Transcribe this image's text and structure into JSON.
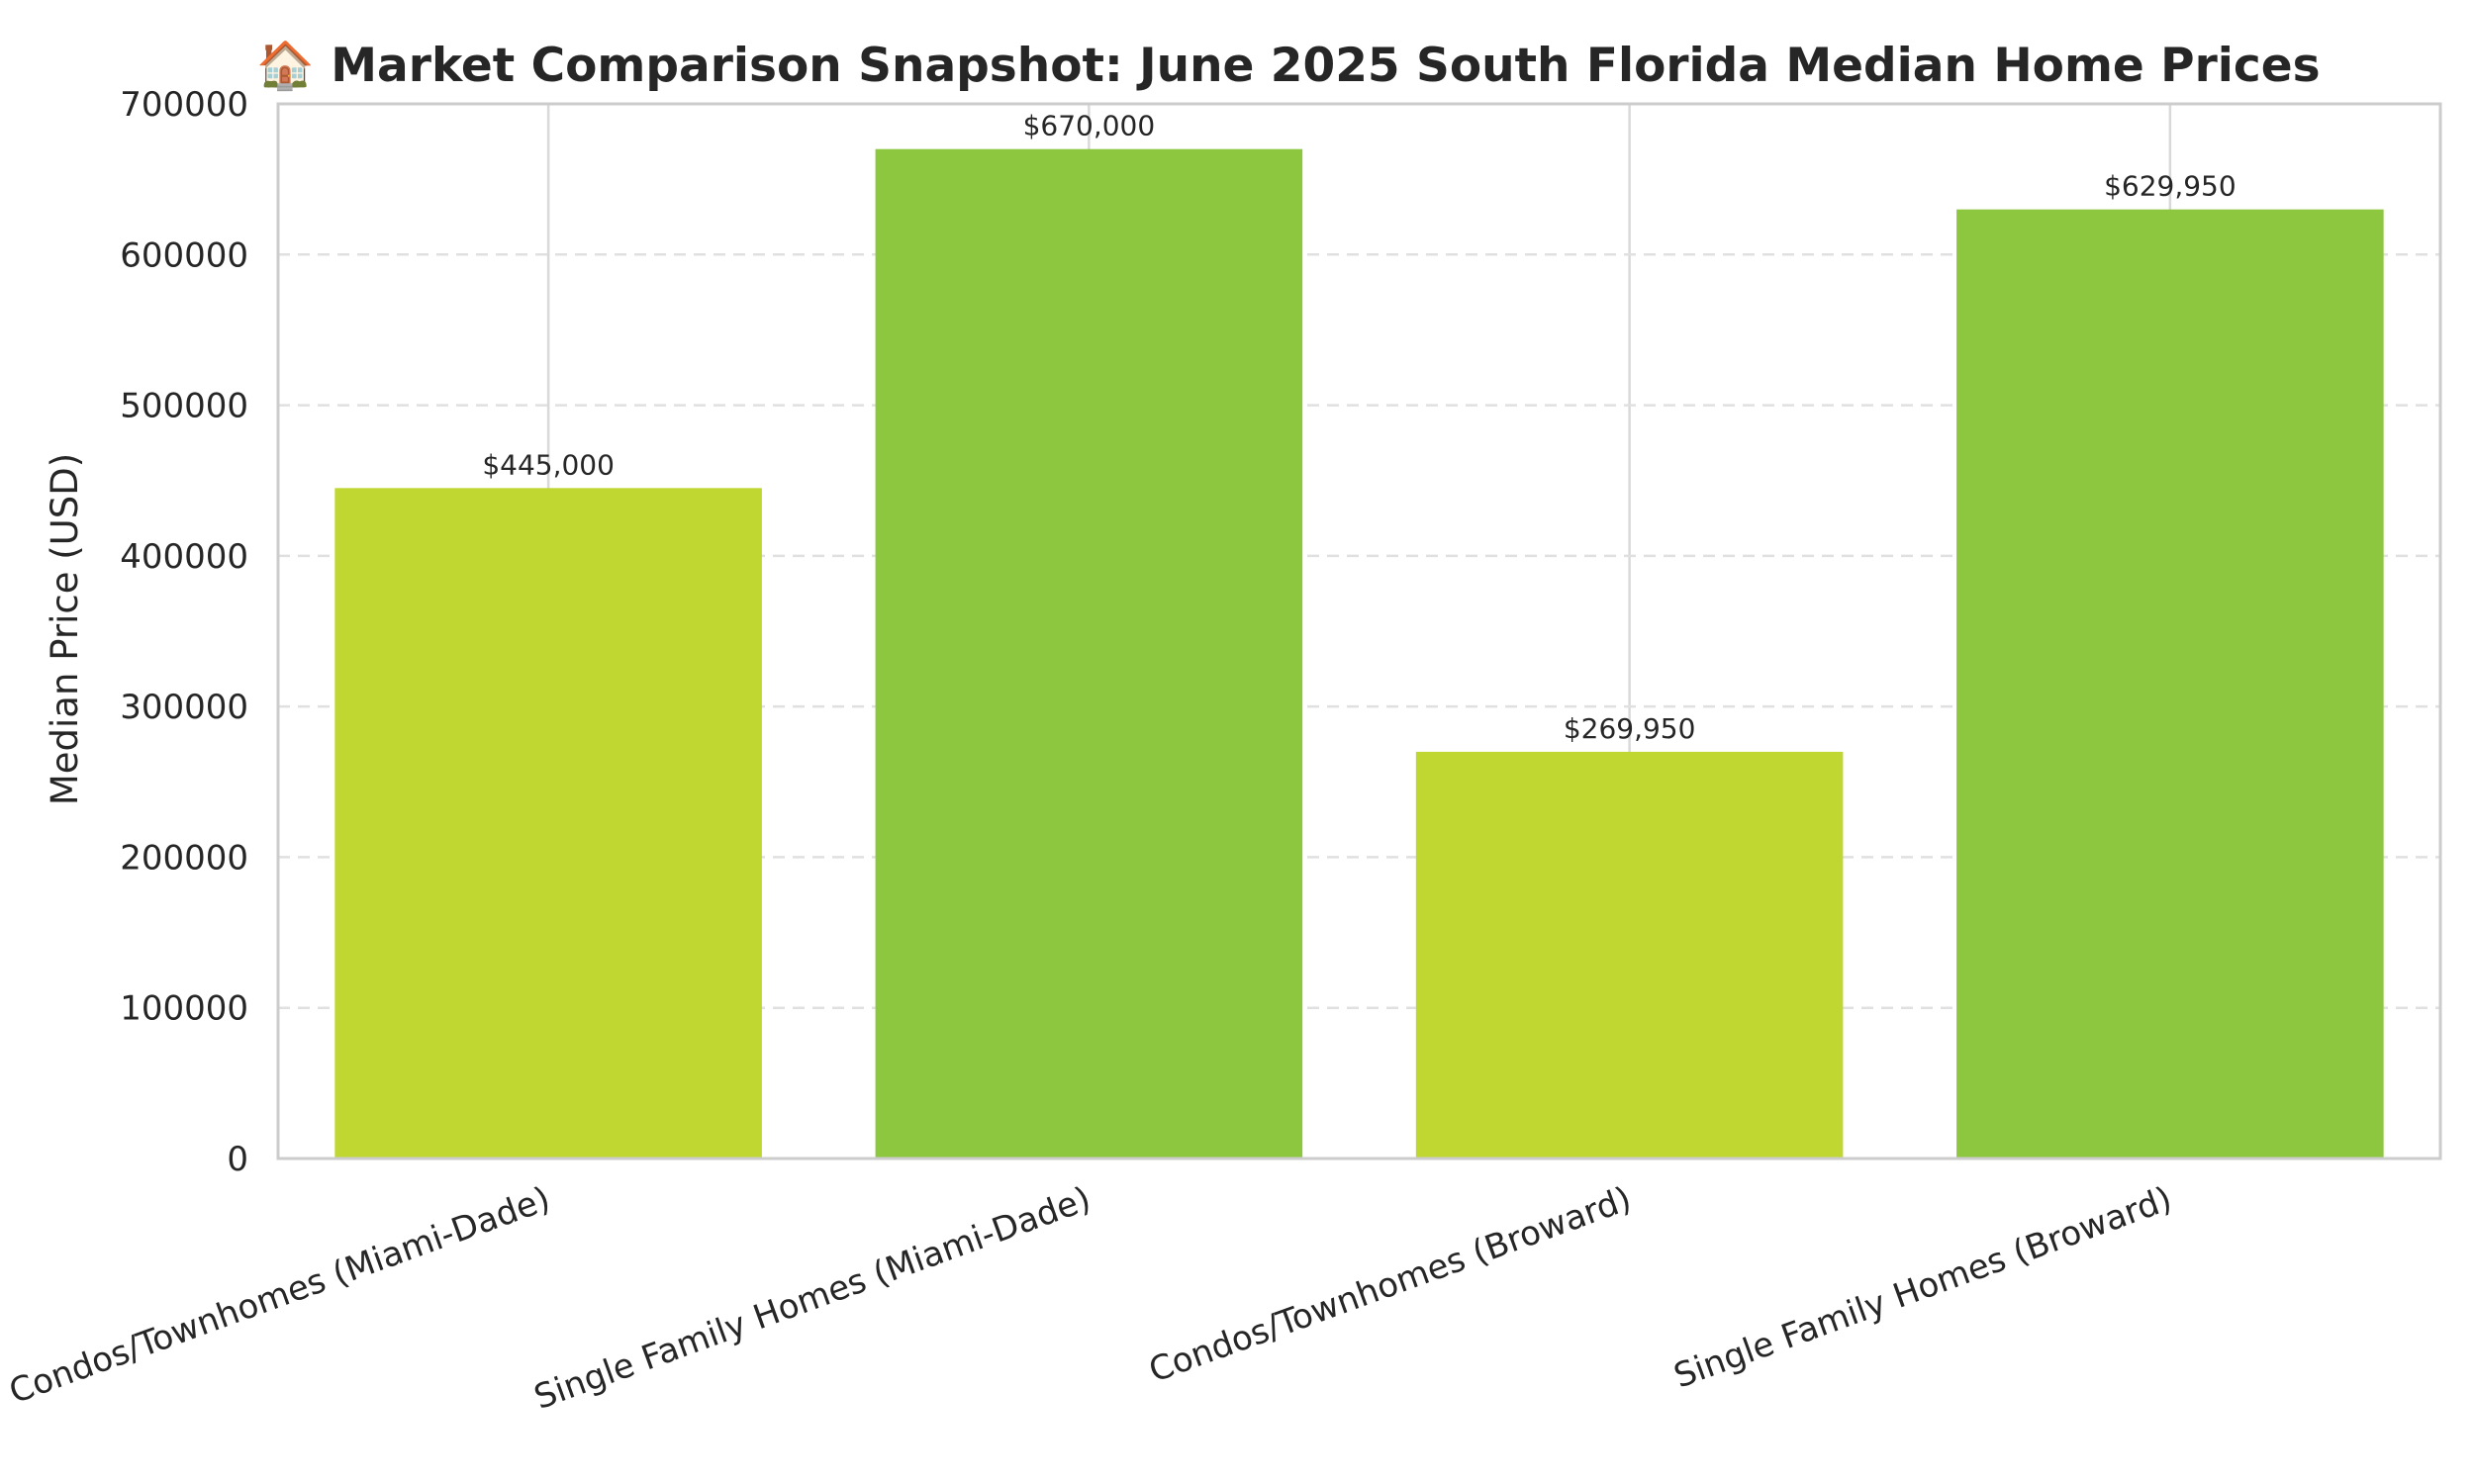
{
  "chart_data": {
    "type": "bar",
    "title": "🏠 Market Comparison Snapshot: June 2025 South Florida Median Home Prices",
    "xlabel": "",
    "ylabel": "Median Price (USD)",
    "categories": [
      "Condos/Townhomes (Miami-Dade)",
      "Single Family Homes (Miami-Dade)",
      "Condos/Townhomes (Broward)",
      "Single Family Homes (Broward)"
    ],
    "values": [
      445000,
      670000,
      269950,
      629950
    ],
    "data_labels": [
      "$445,000",
      "$670,000",
      "$269,950",
      "$629,950"
    ],
    "bar_colors": [
      "#bfd730",
      "#8dc63f",
      "#bfd730",
      "#8dc63f"
    ],
    "ylim": [
      0,
      700000
    ],
    "yticks": [
      0,
      100000,
      200000,
      300000,
      400000,
      500000,
      600000,
      700000
    ],
    "ytick_labels": [
      "0",
      "100000",
      "200000",
      "300000",
      "400000",
      "500000",
      "600000",
      "700000"
    ],
    "grid": true,
    "legend": "none"
  }
}
